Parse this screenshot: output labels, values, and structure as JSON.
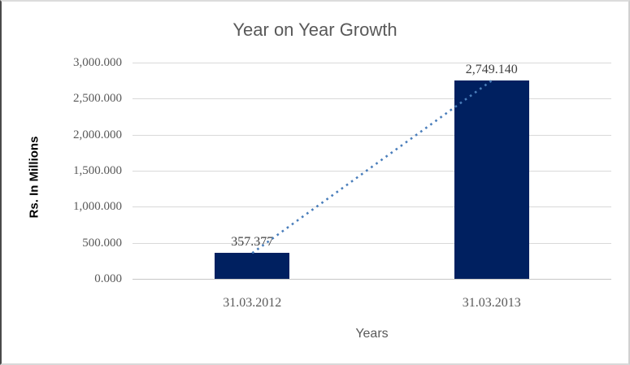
{
  "chart_data": {
    "type": "bar",
    "title": "Year on Year Growth",
    "xlabel": "Years",
    "ylabel": "Rs. In Millions",
    "categories": [
      "31.03.2012",
      "31.03.2013"
    ],
    "values": [
      357.377,
      2749.14
    ],
    "data_labels": [
      "357.377",
      "2,749.140"
    ],
    "ylim": [
      0,
      3000
    ],
    "ytick_values": [
      0,
      500,
      1000,
      1500,
      2000,
      2500,
      3000
    ],
    "ytick_labels": [
      "0.000",
      "500.000",
      "1,000.000",
      "1,500.000",
      "2,000.000",
      "2,500.000",
      "3,000.000"
    ],
    "grid": true,
    "legend_position": "none",
    "trendline": {
      "style": "square-dot",
      "from_point": [
        0,
        357.377
      ],
      "to_point": [
        1,
        2749.14
      ]
    },
    "colors": {
      "bar_fill": "#002060",
      "trendline": "#4a7ebb",
      "gridline": "#d9d9d9",
      "axis_line": "#c6c6c6",
      "title_text": "#595959",
      "tick_text": "#595959",
      "data_label_text": "#404040",
      "y_axis_title_text": "#000000"
    }
  }
}
